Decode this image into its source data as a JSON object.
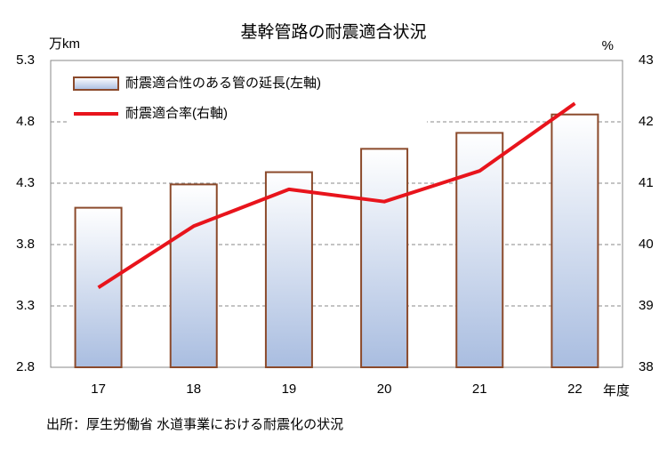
{
  "chart_data": {
    "type": "combo",
    "title": "基幹管路の耐震適合状況",
    "y_unit": "万km",
    "y2_unit": "%",
    "x_label": "年度",
    "source": "出所：厚生労働省 水道事業における耐震化の状況",
    "categories": [
      "17",
      "18",
      "19",
      "20",
      "21",
      "22"
    ],
    "series": [
      {
        "name": "耐震適合性のある管の延長(左軸)",
        "type": "bar",
        "color": "#8b4a2b",
        "values": [
          4.1,
          4.29,
          4.39,
          4.58,
          4.71,
          4.86
        ]
      },
      {
        "name": "耐震適合率(右軸)",
        "type": "line",
        "axis": "y2",
        "color": "#e8141c",
        "values": [
          39.3,
          40.3,
          40.9,
          40.7,
          41.2,
          42.3
        ]
      }
    ],
    "ylim": [
      2.8,
      5.3
    ],
    "yticks": [
      2.8,
      3.3,
      3.8,
      4.3,
      4.8,
      5.3
    ],
    "y2lim": [
      38,
      43
    ],
    "y2ticks": [
      38,
      39,
      40,
      41,
      42,
      43
    ],
    "grid": true,
    "legend": "upper-left"
  }
}
